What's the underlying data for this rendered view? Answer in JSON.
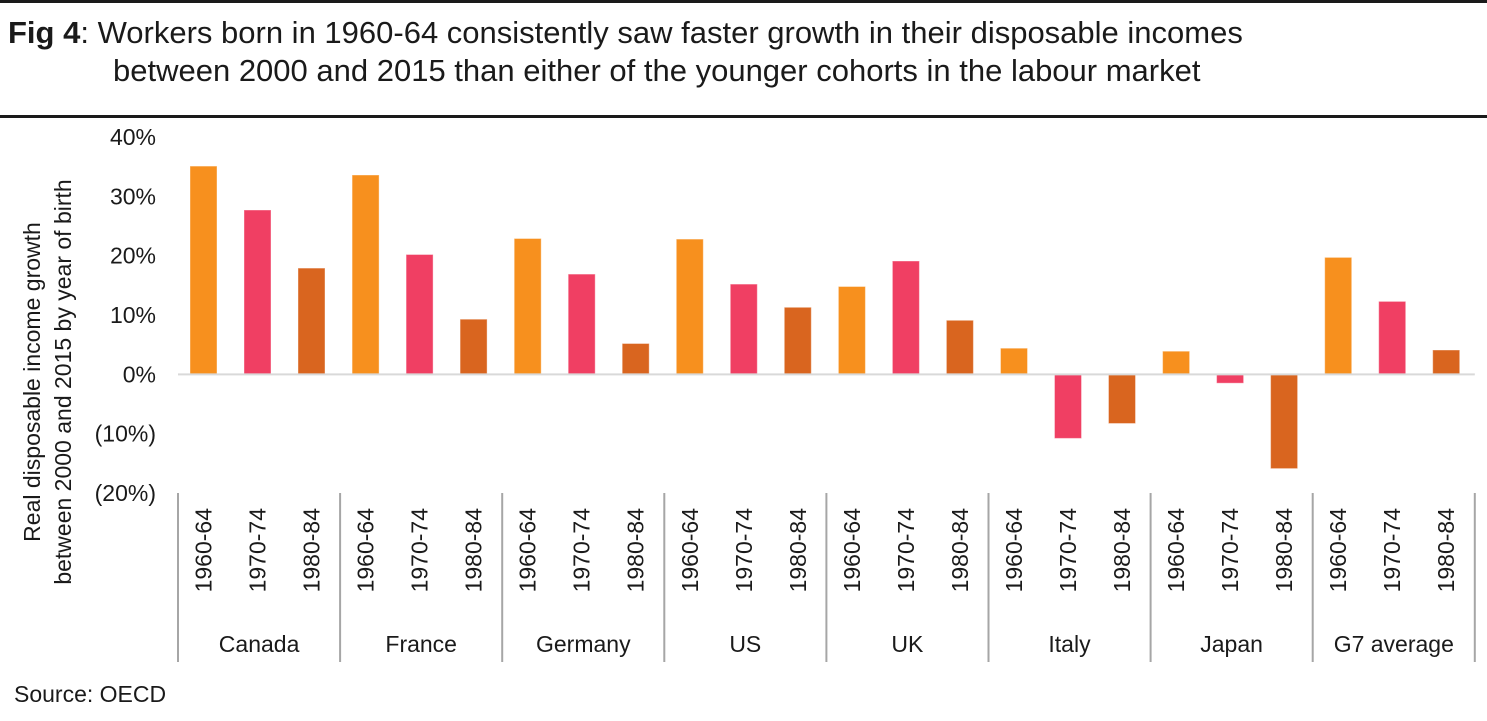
{
  "title": {
    "prefix": "Fig 4",
    "line1": "Workers born in 1960-64 consistently saw faster growth in their disposable incomes",
    "line2": "between 2000 and 2015 than either of the younger cohorts in the labour market"
  },
  "source": "Source: OECD",
  "colors": {
    "1960-64": "#F7901E",
    "1970-74": "#F03F63",
    "1980-84": "#D9651F",
    "zero_line": "#d9d9d9",
    "separator": "#a6a6a6"
  },
  "chart_data": {
    "type": "bar",
    "title": "Workers born in 1960-64 consistently saw faster growth in their disposable incomes between 2000 and 2015 than either of the younger cohorts in the labour market",
    "xlabel": "",
    "ylabel": "Real disposable income growth between 2000 and 2015 by year of birth",
    "ylabel_lines": [
      "Real disposable income growth",
      "between 2000 and 2015 by year of birth"
    ],
    "ylim": [
      -20,
      40
    ],
    "yticks": [
      40,
      30,
      20,
      10,
      0,
      -10,
      -20
    ],
    "ytick_labels": [
      "40%",
      "30%",
      "20%",
      "10%",
      "0%",
      "(10%)",
      "(20%)"
    ],
    "grid": false,
    "legend": "none",
    "cohorts": [
      "1960-64",
      "1970-74",
      "1980-84"
    ],
    "groups": [
      {
        "name": "Canada",
        "values": [
          35.1,
          27.7,
          17.9
        ]
      },
      {
        "name": "France",
        "values": [
          33.6,
          20.2,
          9.3
        ]
      },
      {
        "name": "Germany",
        "values": [
          22.9,
          16.9,
          5.2
        ]
      },
      {
        "name": "US",
        "values": [
          22.8,
          15.2,
          11.3
        ]
      },
      {
        "name": "UK",
        "values": [
          14.8,
          19.1,
          9.1
        ]
      },
      {
        "name": "Italy",
        "values": [
          4.4,
          -10.8,
          -8.3
        ]
      },
      {
        "name": "Japan",
        "values": [
          3.9,
          -1.5,
          -15.9
        ]
      },
      {
        "name": "G7 average",
        "values": [
          19.7,
          12.3,
          4.1
        ]
      }
    ]
  }
}
